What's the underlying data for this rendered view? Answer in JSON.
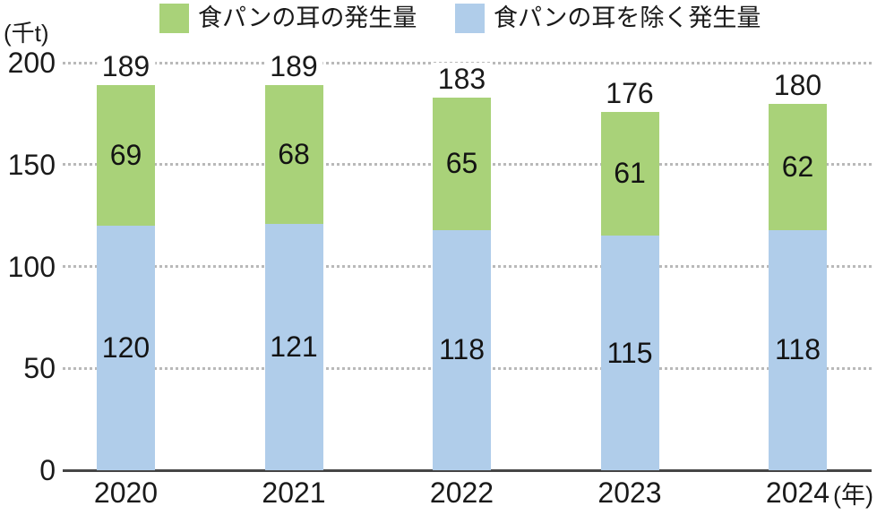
{
  "chart_data": {
    "type": "bar",
    "stacked": true,
    "categories": [
      "2020",
      "2021",
      "2022",
      "2023",
      "2024"
    ],
    "series": [
      {
        "name": "食パンの耳を除く発生量",
        "color": "#b0cdea",
        "values": [
          120,
          121,
          118,
          115,
          118
        ]
      },
      {
        "name": "食パンの耳の発生量",
        "color": "#a9d279",
        "values": [
          69,
          68,
          65,
          61,
          62
        ]
      }
    ],
    "totals": [
      189,
      189,
      183,
      176,
      180
    ],
    "legend": [
      {
        "label": "食パンの耳の発生量",
        "color": "#a9d279"
      },
      {
        "label": "食パンの耳を除く発生量",
        "color": "#b0cdea"
      }
    ],
    "legend_position": "top",
    "y_unit_label": "(千t)",
    "x_unit_label": "(年)",
    "ylim": [
      0,
      200
    ],
    "yticks": [
      0,
      50,
      100,
      150,
      200
    ],
    "grid": "dotted-horizontal",
    "text_color": "#1a1a1a",
    "axis_color": "#454545",
    "gridline_color": "#b9b9b9"
  }
}
